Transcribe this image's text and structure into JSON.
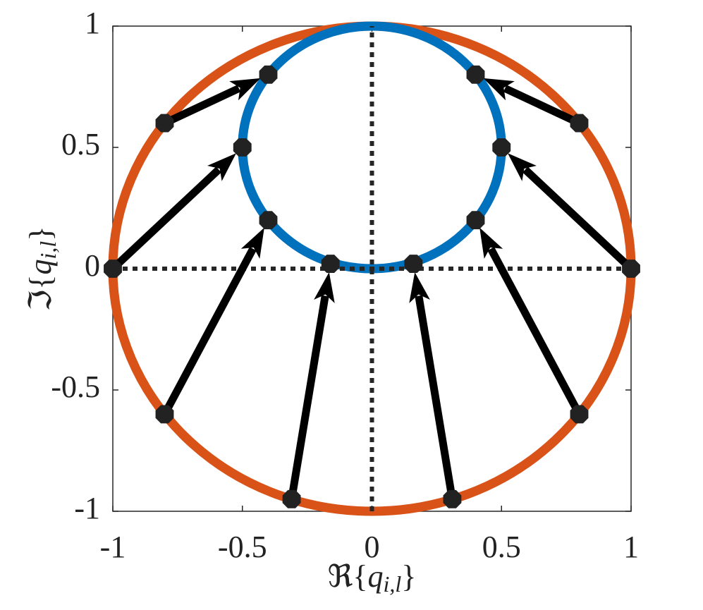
{
  "chart_data": {
    "type": "arrow-map",
    "xlabel": {
      "prefix": "ℜ{",
      "base": "q",
      "sub": "i,l",
      "suffix": "}"
    },
    "ylabel": {
      "prefix": "ℑ{",
      "base": "q",
      "sub": "i,l",
      "suffix": "}"
    },
    "xlim": [
      -1,
      1
    ],
    "ylim": [
      -1,
      1
    ],
    "xticks": [
      -1,
      -0.5,
      0,
      0.5,
      1
    ],
    "yticks": [
      -1,
      -0.5,
      0,
      0.5,
      1
    ],
    "circles": [
      {
        "color": "#d95319",
        "cx": 0,
        "cy": 0,
        "r": 1
      },
      {
        "color": "#0072bd",
        "cx": 0,
        "cy": 0.5,
        "r": 0.5
      }
    ],
    "arrows": {
      "color": "#000000",
      "marker_color": "#222222",
      "x0": [
        -1,
        -0.8,
        0.8,
        1,
        -0.8,
        0.8,
        -0.31,
        0.31
      ],
      "y0": [
        0,
        0.6,
        0.6,
        0,
        -0.6,
        -0.6,
        -0.95,
        -0.95
      ],
      "x1": [
        -0.5,
        -0.4,
        0.4,
        0.5,
        -0.4,
        0.4,
        -0.16,
        0.16
      ],
      "y1": [
        0.5,
        0.8,
        0.8,
        0.5,
        0.2,
        0.2,
        0.02,
        0.02
      ]
    }
  }
}
